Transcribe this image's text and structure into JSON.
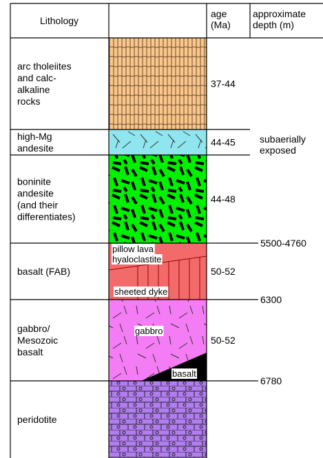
{
  "header": {
    "lithology": "Lithology",
    "age": [
      "age",
      "(Ma)"
    ],
    "depth": [
      "approximate",
      "depth (m)"
    ]
  },
  "rows": [
    {
      "lithology": [
        "arc tholeiites",
        "and calc-",
        "alkaline",
        "rocks"
      ],
      "age": "37-44"
    },
    {
      "lithology": [
        "high-Mg",
        "andesite"
      ],
      "age": "44-45"
    },
    {
      "lithology": [
        "boninite",
        "andesite",
        "(and their",
        "differentiates)"
      ],
      "age": "44-48"
    },
    {
      "lithology": [
        "basalt (FAB)"
      ],
      "age": "50-52",
      "labels": [
        "pillow lava",
        "hyaloclastite",
        "sheeted dyke"
      ]
    },
    {
      "lithology": [
        "gabbro/",
        "Mesozoic",
        "basalt"
      ],
      "age": "50-52",
      "labels": [
        "gabbro",
        "basalt"
      ]
    },
    {
      "lithology": [
        "peridotite"
      ]
    }
  ],
  "depth": {
    "exposed": [
      "subaerially",
      "exposed"
    ],
    "boundaries": [
      "5500-4760",
      "6300",
      "6780"
    ]
  }
}
